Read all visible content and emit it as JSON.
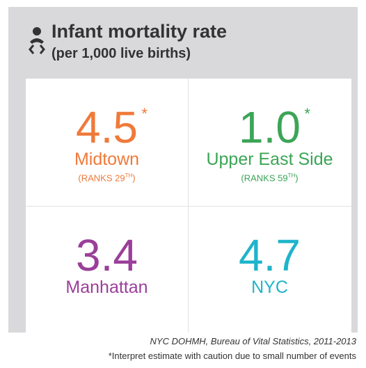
{
  "header": {
    "title": "Infant mortality rate",
    "subtitle": "(per 1,000 live births)"
  },
  "cells": [
    {
      "value": "4.5",
      "asterisk": "*",
      "name": "Midtown",
      "color": "#ef7a3a",
      "rank": {
        "text": "(RANKS 29",
        "ordinal": "TH",
        "close": ")"
      }
    },
    {
      "value": "1.0",
      "asterisk": "*",
      "name": "Upper East Side",
      "color": "#3ba556",
      "rank": {
        "text": "(RANKS 59",
        "ordinal": "TH",
        "close": ")"
      }
    },
    {
      "value": "3.4",
      "name": "Manhattan",
      "color": "#9a3f99"
    },
    {
      "value": "4.7",
      "name": "NYC",
      "color": "#1fb4ca"
    }
  ],
  "footer": {
    "source": "NYC DOHMH, Bureau of Vital Statistics, 2011-2013",
    "note": "*Interpret estimate with caution due to small number of events"
  }
}
